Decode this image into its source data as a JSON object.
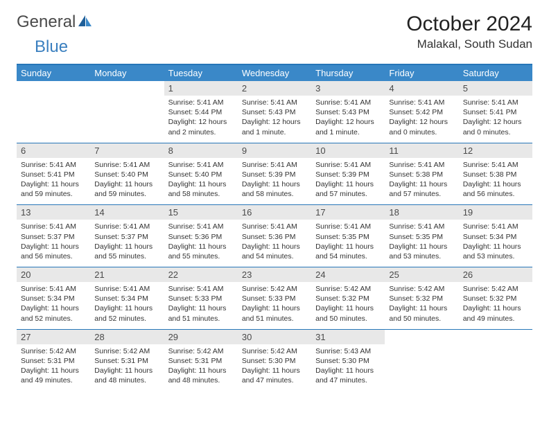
{
  "logo": {
    "text1": "General",
    "text2": "Blue"
  },
  "title": "October 2024",
  "location": "Malakal, South Sudan",
  "colors": {
    "header_bg": "#3a88c8",
    "header_text": "#ffffff",
    "daynum_bg": "#e8e8e8",
    "border": "#2676b8",
    "logo_gray": "#4a4a4a",
    "logo_blue": "#3a7fbf"
  },
  "day_headers": [
    "Sunday",
    "Monday",
    "Tuesday",
    "Wednesday",
    "Thursday",
    "Friday",
    "Saturday"
  ],
  "weeks": [
    {
      "nums": [
        "",
        "",
        "1",
        "2",
        "3",
        "4",
        "5"
      ],
      "cells": [
        null,
        null,
        {
          "sunrise": "Sunrise: 5:41 AM",
          "sunset": "Sunset: 5:44 PM",
          "daylight1": "Daylight: 12 hours",
          "daylight2": "and 2 minutes."
        },
        {
          "sunrise": "Sunrise: 5:41 AM",
          "sunset": "Sunset: 5:43 PM",
          "daylight1": "Daylight: 12 hours",
          "daylight2": "and 1 minute."
        },
        {
          "sunrise": "Sunrise: 5:41 AM",
          "sunset": "Sunset: 5:43 PM",
          "daylight1": "Daylight: 12 hours",
          "daylight2": "and 1 minute."
        },
        {
          "sunrise": "Sunrise: 5:41 AM",
          "sunset": "Sunset: 5:42 PM",
          "daylight1": "Daylight: 12 hours",
          "daylight2": "and 0 minutes."
        },
        {
          "sunrise": "Sunrise: 5:41 AM",
          "sunset": "Sunset: 5:41 PM",
          "daylight1": "Daylight: 12 hours",
          "daylight2": "and 0 minutes."
        }
      ]
    },
    {
      "nums": [
        "6",
        "7",
        "8",
        "9",
        "10",
        "11",
        "12"
      ],
      "cells": [
        {
          "sunrise": "Sunrise: 5:41 AM",
          "sunset": "Sunset: 5:41 PM",
          "daylight1": "Daylight: 11 hours",
          "daylight2": "and 59 minutes."
        },
        {
          "sunrise": "Sunrise: 5:41 AM",
          "sunset": "Sunset: 5:40 PM",
          "daylight1": "Daylight: 11 hours",
          "daylight2": "and 59 minutes."
        },
        {
          "sunrise": "Sunrise: 5:41 AM",
          "sunset": "Sunset: 5:40 PM",
          "daylight1": "Daylight: 11 hours",
          "daylight2": "and 58 minutes."
        },
        {
          "sunrise": "Sunrise: 5:41 AM",
          "sunset": "Sunset: 5:39 PM",
          "daylight1": "Daylight: 11 hours",
          "daylight2": "and 58 minutes."
        },
        {
          "sunrise": "Sunrise: 5:41 AM",
          "sunset": "Sunset: 5:39 PM",
          "daylight1": "Daylight: 11 hours",
          "daylight2": "and 57 minutes."
        },
        {
          "sunrise": "Sunrise: 5:41 AM",
          "sunset": "Sunset: 5:38 PM",
          "daylight1": "Daylight: 11 hours",
          "daylight2": "and 57 minutes."
        },
        {
          "sunrise": "Sunrise: 5:41 AM",
          "sunset": "Sunset: 5:38 PM",
          "daylight1": "Daylight: 11 hours",
          "daylight2": "and 56 minutes."
        }
      ]
    },
    {
      "nums": [
        "13",
        "14",
        "15",
        "16",
        "17",
        "18",
        "19"
      ],
      "cells": [
        {
          "sunrise": "Sunrise: 5:41 AM",
          "sunset": "Sunset: 5:37 PM",
          "daylight1": "Daylight: 11 hours",
          "daylight2": "and 56 minutes."
        },
        {
          "sunrise": "Sunrise: 5:41 AM",
          "sunset": "Sunset: 5:37 PM",
          "daylight1": "Daylight: 11 hours",
          "daylight2": "and 55 minutes."
        },
        {
          "sunrise": "Sunrise: 5:41 AM",
          "sunset": "Sunset: 5:36 PM",
          "daylight1": "Daylight: 11 hours",
          "daylight2": "and 55 minutes."
        },
        {
          "sunrise": "Sunrise: 5:41 AM",
          "sunset": "Sunset: 5:36 PM",
          "daylight1": "Daylight: 11 hours",
          "daylight2": "and 54 minutes."
        },
        {
          "sunrise": "Sunrise: 5:41 AM",
          "sunset": "Sunset: 5:35 PM",
          "daylight1": "Daylight: 11 hours",
          "daylight2": "and 54 minutes."
        },
        {
          "sunrise": "Sunrise: 5:41 AM",
          "sunset": "Sunset: 5:35 PM",
          "daylight1": "Daylight: 11 hours",
          "daylight2": "and 53 minutes."
        },
        {
          "sunrise": "Sunrise: 5:41 AM",
          "sunset": "Sunset: 5:34 PM",
          "daylight1": "Daylight: 11 hours",
          "daylight2": "and 53 minutes."
        }
      ]
    },
    {
      "nums": [
        "20",
        "21",
        "22",
        "23",
        "24",
        "25",
        "26"
      ],
      "cells": [
        {
          "sunrise": "Sunrise: 5:41 AM",
          "sunset": "Sunset: 5:34 PM",
          "daylight1": "Daylight: 11 hours",
          "daylight2": "and 52 minutes."
        },
        {
          "sunrise": "Sunrise: 5:41 AM",
          "sunset": "Sunset: 5:34 PM",
          "daylight1": "Daylight: 11 hours",
          "daylight2": "and 52 minutes."
        },
        {
          "sunrise": "Sunrise: 5:41 AM",
          "sunset": "Sunset: 5:33 PM",
          "daylight1": "Daylight: 11 hours",
          "daylight2": "and 51 minutes."
        },
        {
          "sunrise": "Sunrise: 5:42 AM",
          "sunset": "Sunset: 5:33 PM",
          "daylight1": "Daylight: 11 hours",
          "daylight2": "and 51 minutes."
        },
        {
          "sunrise": "Sunrise: 5:42 AM",
          "sunset": "Sunset: 5:32 PM",
          "daylight1": "Daylight: 11 hours",
          "daylight2": "and 50 minutes."
        },
        {
          "sunrise": "Sunrise: 5:42 AM",
          "sunset": "Sunset: 5:32 PM",
          "daylight1": "Daylight: 11 hours",
          "daylight2": "and 50 minutes."
        },
        {
          "sunrise": "Sunrise: 5:42 AM",
          "sunset": "Sunset: 5:32 PM",
          "daylight1": "Daylight: 11 hours",
          "daylight2": "and 49 minutes."
        }
      ]
    },
    {
      "nums": [
        "27",
        "28",
        "29",
        "30",
        "31",
        "",
        ""
      ],
      "cells": [
        {
          "sunrise": "Sunrise: 5:42 AM",
          "sunset": "Sunset: 5:31 PM",
          "daylight1": "Daylight: 11 hours",
          "daylight2": "and 49 minutes."
        },
        {
          "sunrise": "Sunrise: 5:42 AM",
          "sunset": "Sunset: 5:31 PM",
          "daylight1": "Daylight: 11 hours",
          "daylight2": "and 48 minutes."
        },
        {
          "sunrise": "Sunrise: 5:42 AM",
          "sunset": "Sunset: 5:31 PM",
          "daylight1": "Daylight: 11 hours",
          "daylight2": "and 48 minutes."
        },
        {
          "sunrise": "Sunrise: 5:42 AM",
          "sunset": "Sunset: 5:30 PM",
          "daylight1": "Daylight: 11 hours",
          "daylight2": "and 47 minutes."
        },
        {
          "sunrise": "Sunrise: 5:43 AM",
          "sunset": "Sunset: 5:30 PM",
          "daylight1": "Daylight: 11 hours",
          "daylight2": "and 47 minutes."
        },
        null,
        null
      ]
    }
  ]
}
